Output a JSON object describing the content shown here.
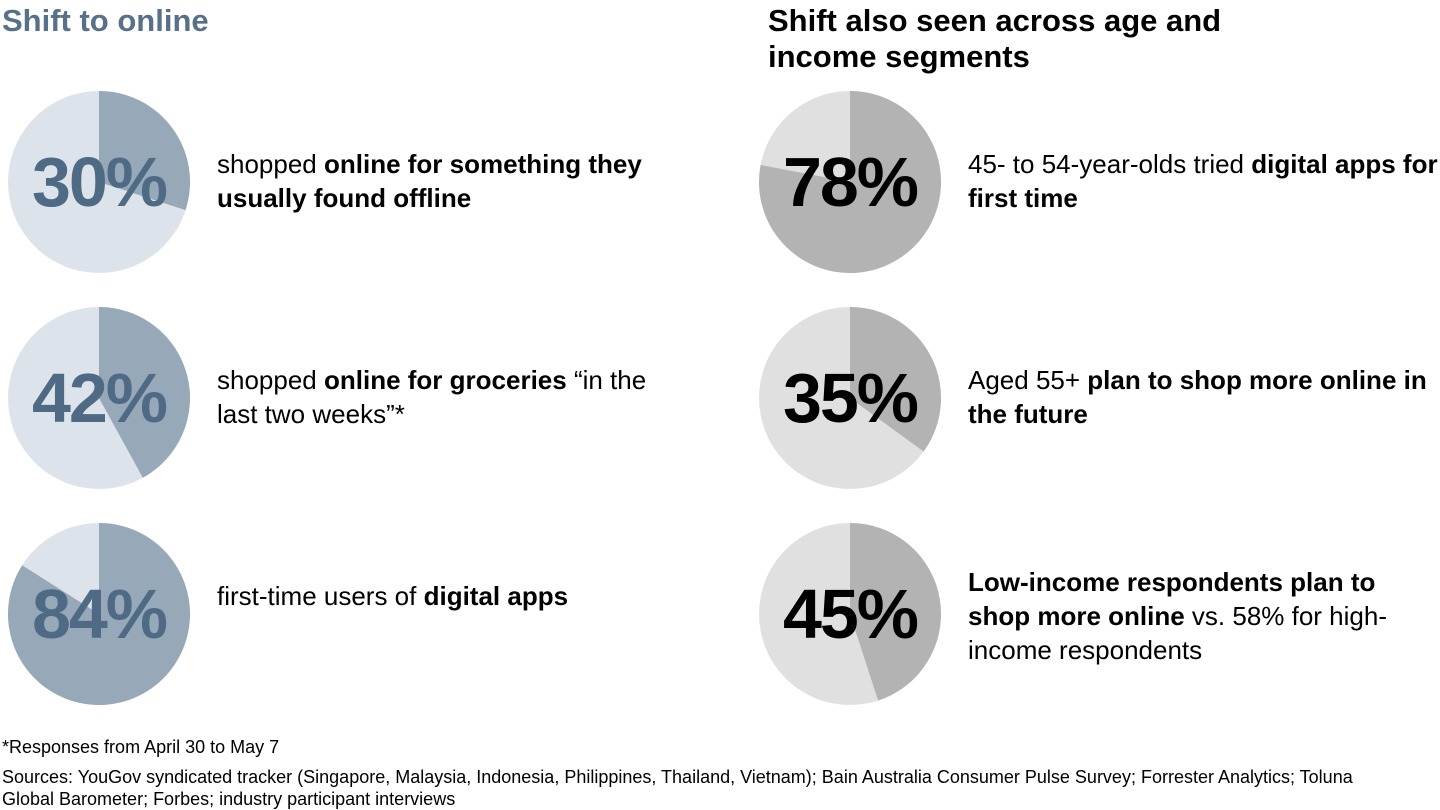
{
  "left": {
    "title": "Shift to online",
    "text_color": "#4f6a85",
    "slice_color": "#97a9b9",
    "rest_color": "#dde3ea",
    "items": [
      {
        "percent": 30,
        "label": "30%",
        "segments": [
          {
            "t": "shopped ",
            "b": false
          },
          {
            "t": "online for something they usually found offline",
            "b": true
          }
        ]
      },
      {
        "percent": 42,
        "label": "42%",
        "segments": [
          {
            "t": "shopped ",
            "b": false
          },
          {
            "t": "online for groceries",
            "b": true
          },
          {
            "t": " “in the last two weeks”*",
            "b": false
          }
        ]
      },
      {
        "percent": 84,
        "label": "84%",
        "segments": [
          {
            "t": "first-time users of ",
            "b": false
          },
          {
            "t": "digital apps",
            "b": true
          }
        ]
      }
    ]
  },
  "right": {
    "title": "Shift also seen across age and income segments",
    "text_color": "#000000",
    "slice_color": "#b3b3b3",
    "rest_color": "#e0e0e0",
    "items": [
      {
        "percent": 78,
        "label": "78%",
        "segments": [
          {
            "t": "45- to 54-year-olds tried ",
            "b": false
          },
          {
            "t": "digital apps for first time",
            "b": true
          }
        ]
      },
      {
        "percent": 35,
        "label": "35%",
        "segments": [
          {
            "t": "Aged 55+ ",
            "b": false
          },
          {
            "t": "plan to shop more online in the future",
            "b": true
          }
        ]
      },
      {
        "percent": 45,
        "label": "45%",
        "segments": [
          {
            "t": "Low-income respondents plan to shop more online",
            "b": true
          },
          {
            "t": " vs. 58% for high-income respondents",
            "b": false
          }
        ]
      }
    ]
  },
  "footnote": "*Responses from April 30 to May 7",
  "sources": "Sources: YouGov syndicated tracker (Singapore, Malaysia, Indonesia, Philippines, Thailand, Vietnam); Bain Australia Consumer Pulse Survey; Forrester Analytics; Toluna Global Barometer; Forbes; industry participant interviews",
  "chart_data": {
    "type": "pie",
    "title": "Shift to online / Shift also seen across age and income segments",
    "series": [
      {
        "name": "Shift to online",
        "values": [
          30,
          42,
          84
        ]
      },
      {
        "name": "Age and income segments",
        "values": [
          78,
          35,
          45
        ]
      }
    ]
  }
}
